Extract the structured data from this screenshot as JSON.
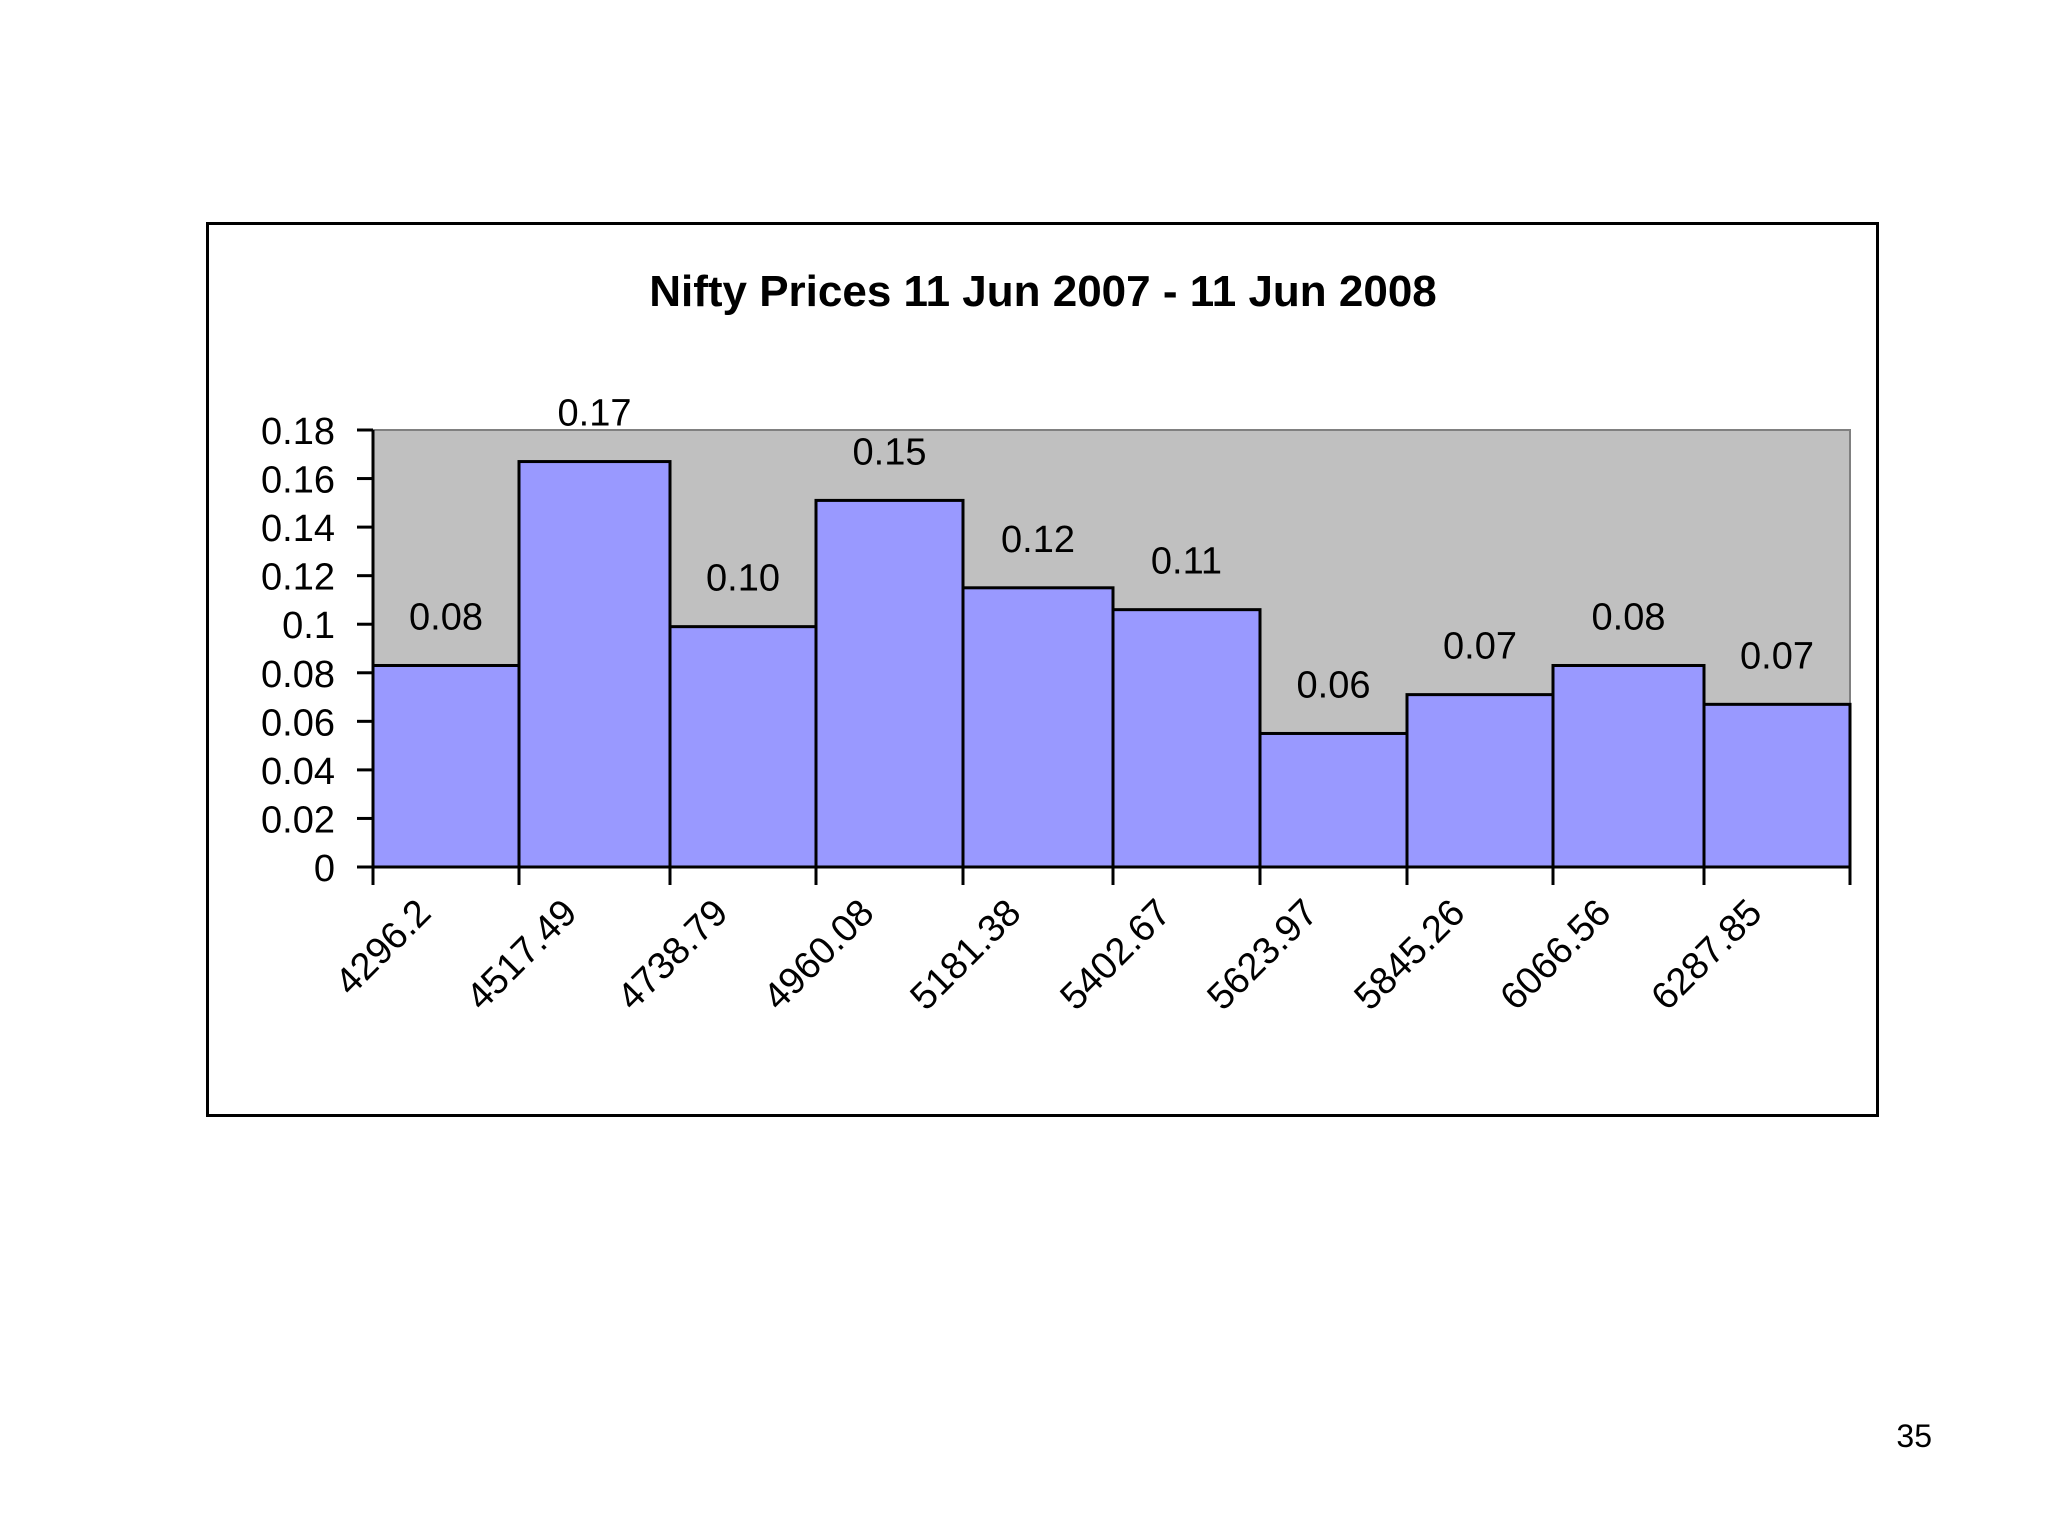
{
  "slide": {
    "page_number": "35"
  },
  "colors": {
    "bar_fill": "#9999ff",
    "plot_background": "#c0c0c0",
    "bar_stroke": "#000000"
  },
  "chart_data": {
    "type": "bar",
    "title": "Nifty Prices  11 Jun 2007 - 11 Jun 2008",
    "xlabel": "",
    "ylabel": "",
    "categories": [
      "4296.2",
      "4517.49",
      "4738.79",
      "4960.08",
      "5181.38",
      "5402.67",
      "5623.97",
      "5845.26",
      "6066.56",
      "6287.85"
    ],
    "values": [
      0.083,
      0.167,
      0.099,
      0.151,
      0.115,
      0.106,
      0.055,
      0.071,
      0.083,
      0.067
    ],
    "value_labels": [
      "0.08",
      "0.17",
      "0.10",
      "0.15",
      "0.12",
      "0.11",
      "0.06",
      "0.07",
      "0.08",
      "0.07"
    ],
    "ylim": [
      0,
      0.18
    ],
    "yticks": [
      "0",
      "0.02",
      "0.04",
      "0.06",
      "0.08",
      "0.1",
      "0.12",
      "0.14",
      "0.16",
      "0.18"
    ],
    "grid": false,
    "legend": "none"
  }
}
